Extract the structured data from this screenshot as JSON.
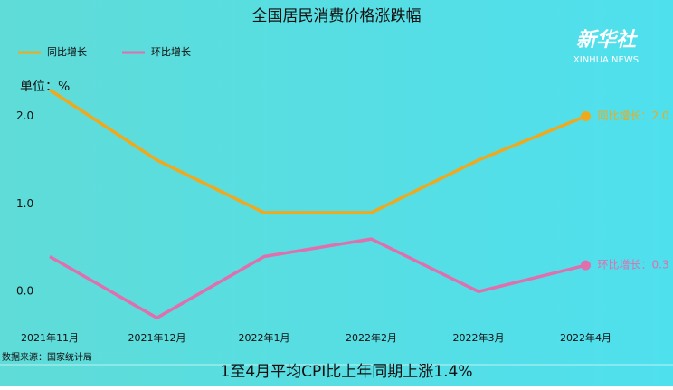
{
  "chart_data": {
    "type": "line",
    "title": "全国居民消费价格涨跌幅",
    "y_label": "单位：%",
    "categories": [
      "2021年11月",
      "2021年12月",
      "2022年1月",
      "2022年2月",
      "2022年3月",
      "2022年4月"
    ],
    "series": [
      {
        "name": "同比增长",
        "color": "#f0a81c",
        "values": [
          2.3,
          1.5,
          0.9,
          0.9,
          1.5,
          2.0
        ],
        "value_labels": [
          null,
          null,
          null,
          null,
          null,
          "同比增长：2.0"
        ]
      },
      {
        "name": "环比增长",
        "color": "#e06fae",
        "values": [
          0.4,
          -0.3,
          0.4,
          0.6,
          0.0,
          0.3
        ],
        "value_labels": [
          null,
          null,
          null,
          null,
          null,
          "环比增长：0.3"
        ]
      }
    ],
    "ylim": [
      -0.4,
      2.5
    ],
    "yticks": [
      {
        "value": 0,
        "label": "0.0"
      },
      {
        "value": 1,
        "label": "1.0"
      },
      {
        "value": 2,
        "label": "2.0"
      }
    ],
    "grid": false,
    "legend": "top-left",
    "source": "数据来源：国家统计局",
    "footnote": "1至4月平均CPI比上年同期上涨1.4%",
    "logo": "新华社",
    "logo_sub": "XINHUA NEWS"
  }
}
